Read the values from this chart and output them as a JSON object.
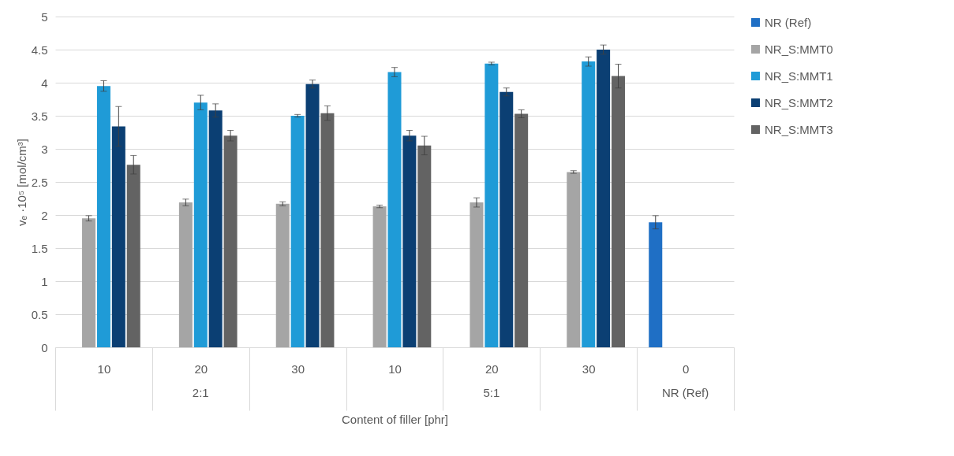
{
  "chart_data": {
    "type": "bar",
    "xlabel": "Content of filler [phr]",
    "ylabel": "vₑ ·10⁵ [mol/cm³]",
    "categories": [
      "10",
      "20",
      "30",
      "10",
      "20",
      "30",
      "0"
    ],
    "annotations": [
      "2:1",
      "5:1",
      "NR (Ref)"
    ],
    "ylim": [
      0,
      5
    ],
    "yticks": [
      0,
      0.5,
      1,
      1.5,
      2,
      2.5,
      3,
      3.5,
      4,
      4.5,
      5
    ],
    "grid": "y",
    "legend": "right",
    "series": [
      {
        "name": "NR (Ref)",
        "color": "#1f6fc5",
        "values": [
          null,
          null,
          null,
          null,
          null,
          null,
          1.89
        ],
        "errors": [
          null,
          null,
          null,
          null,
          null,
          null,
          0.1
        ]
      },
      {
        "name": "NR_S:MMT0",
        "color": "#a5a5a5",
        "values": [
          1.95,
          2.19,
          2.17,
          2.13,
          2.19,
          2.65,
          null
        ],
        "errors": [
          0.04,
          0.05,
          0.03,
          0.02,
          0.07,
          0.02,
          null
        ]
      },
      {
        "name": "NR_S:MMT1",
        "color": "#1f9bd7",
        "values": [
          3.95,
          3.7,
          3.5,
          4.16,
          4.29,
          4.32,
          null
        ],
        "errors": [
          0.08,
          0.11,
          0.02,
          0.07,
          0.02,
          0.07,
          null
        ]
      },
      {
        "name": "NR_S:MMT2",
        "color": "#0b3f73",
        "values": [
          3.34,
          3.58,
          3.98,
          3.2,
          3.86,
          4.5,
          null
        ],
        "errors": [
          0.3,
          0.1,
          0.06,
          0.08,
          0.06,
          0.07,
          null
        ]
      },
      {
        "name": "NR_S:MMT3",
        "color": "#636363",
        "values": [
          2.76,
          3.2,
          3.54,
          3.05,
          3.53,
          4.1,
          null
        ],
        "errors": [
          0.14,
          0.08,
          0.11,
          0.14,
          0.06,
          0.18,
          null
        ]
      }
    ]
  }
}
